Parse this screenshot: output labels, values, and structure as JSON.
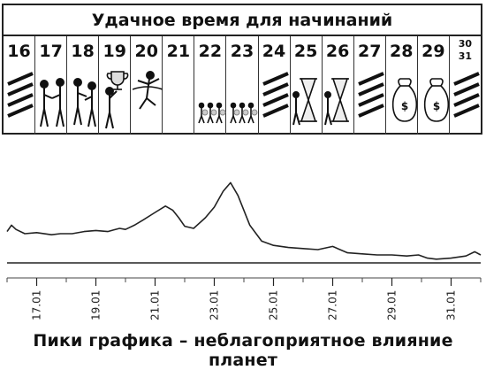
{
  "calendar": {
    "title": "Удачное время для начинаний",
    "days": [
      {
        "label": "16",
        "icon": "unfavorable-stripes-icon"
      },
      {
        "label": "17",
        "icon": "handshake-icon"
      },
      {
        "label": "18",
        "icon": "people-meeting-icon"
      },
      {
        "label": "19",
        "icon": "trophy-icon"
      },
      {
        "label": "20",
        "icon": "finish-runner-icon"
      },
      {
        "label": "21",
        "icon": "empty-day-icon"
      },
      {
        "label": "22",
        "icon": "runners-race-icon"
      },
      {
        "label": "23",
        "icon": "runners-race-icon"
      },
      {
        "label": "24",
        "icon": "unfavorable-stripes-icon"
      },
      {
        "label": "25",
        "icon": "hourglass-icon"
      },
      {
        "label": "26",
        "icon": "hourglass-icon"
      },
      {
        "label": "27",
        "icon": "unfavorable-stripes-icon"
      },
      {
        "label": "28",
        "icon": "money-bag-icon"
      },
      {
        "label": "29",
        "icon": "money-bag-icon"
      },
      {
        "label": "30\n31",
        "icon": "unfavorable-stripes-icon"
      }
    ]
  },
  "chart_data": {
    "type": "line",
    "title": "",
    "xlabel": "",
    "ylabel": "",
    "caption": "Пики графика – неблагоприятное влияние планет",
    "tick_labels": [
      "17.01",
      "19.01",
      "21.01",
      "23.01",
      "25.01",
      "27.01",
      "29.01",
      "31.01"
    ],
    "xlim": [
      16,
      32
    ],
    "ylim": [
      0,
      100
    ],
    "grid": false,
    "series": [
      {
        "x": [
          16.0,
          16.15,
          16.3,
          16.6,
          17.0,
          17.5,
          17.8,
          18.2,
          18.6,
          19.0,
          19.4,
          19.8,
          20.0,
          20.3,
          20.6,
          21.0,
          21.35,
          21.6,
          21.8,
          22.0,
          22.3,
          22.7,
          23.0,
          23.3,
          23.55,
          23.8,
          24.2,
          24.6,
          25.0,
          25.5,
          26.0,
          26.5,
          27.0,
          27.5,
          28.0,
          28.5,
          29.0,
          29.5,
          29.9,
          30.2,
          30.5,
          31.0,
          31.5,
          31.8,
          32.0
        ],
        "y": [
          32,
          38,
          34,
          30,
          31,
          29,
          30,
          30,
          32,
          33,
          32,
          35,
          34,
          38,
          43,
          50,
          56,
          52,
          45,
          37,
          35,
          45,
          55,
          70,
          78,
          66,
          38,
          23,
          19,
          17,
          16,
          15,
          18,
          12,
          11,
          10,
          10,
          9,
          10,
          7,
          6,
          7,
          9,
          13,
          10
        ]
      }
    ]
  }
}
